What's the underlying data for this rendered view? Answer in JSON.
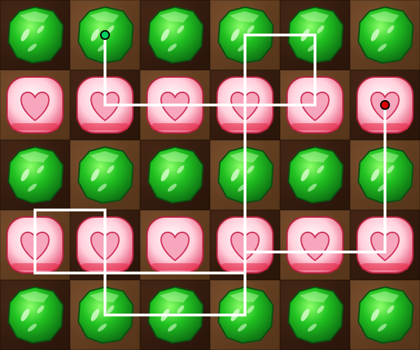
{
  "board": {
    "rows": 5,
    "cols": 6,
    "orbs": [
      [
        "wood",
        "wood",
        "wood",
        "wood",
        "wood",
        "wood"
      ],
      [
        "heart",
        "heart",
        "heart",
        "heart",
        "heart",
        "heart"
      ],
      [
        "wood",
        "wood",
        "wood",
        "wood",
        "wood",
        "wood"
      ],
      [
        "heart",
        "heart",
        "heart",
        "heart",
        "heart",
        "heart"
      ],
      [
        "wood",
        "wood",
        "wood",
        "wood",
        "wood",
        "wood"
      ]
    ],
    "orb_icons": {
      "wood": "green-wood-orb-icon",
      "heart": "pink-heart-orb-icon"
    }
  },
  "colors": {
    "path_line": "#ffffff",
    "path_start": "#00d060",
    "path_end": "#e00000",
    "wood_orb": "#2ecc2e",
    "heart_orb": "#f7b6c8"
  },
  "move_path": {
    "description_cells": [
      [
        0,
        1
      ],
      [
        1,
        1
      ],
      [
        1,
        2
      ],
      [
        1,
        3
      ],
      [
        1,
        4
      ],
      [
        0,
        4
      ],
      [
        0,
        3
      ],
      [
        1,
        3
      ],
      [
        2,
        3
      ],
      [
        3,
        3
      ],
      [
        4,
        3
      ],
      [
        4,
        2
      ],
      [
        4,
        1
      ],
      [
        3,
        1
      ],
      [
        2,
        1
      ],
      [
        2,
        0
      ],
      [
        3,
        0
      ],
      [
        3,
        1
      ],
      [
        3,
        2
      ],
      [
        3,
        3
      ],
      [
        3,
        4
      ],
      [
        3,
        5
      ],
      [
        2,
        5
      ],
      [
        1,
        5
      ]
    ],
    "start_cell": [
      0,
      1
    ],
    "end_cell": [
      1,
      5
    ]
  }
}
